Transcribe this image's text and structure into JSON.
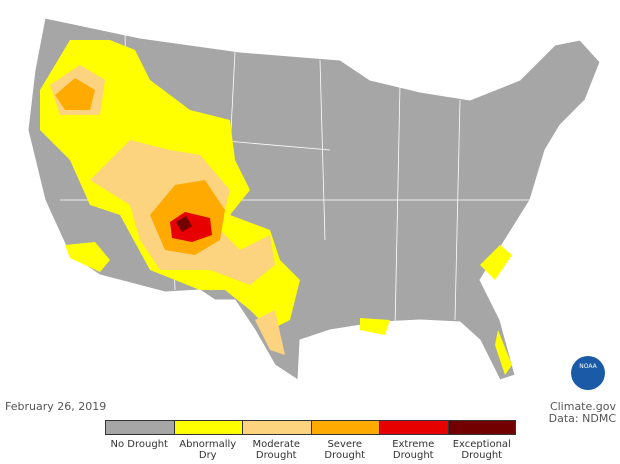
{
  "date": "February 26, 2019",
  "credit": {
    "source": "Climate.gov",
    "data": "Data: NDMC"
  },
  "logo": "NOAA",
  "legend": [
    {
      "label": "No Drought",
      "color": "#a6a6a6"
    },
    {
      "label": "Abnormally Dry",
      "color": "#ffff00"
    },
    {
      "label": "Moderate Drought",
      "color": "#fcd37f"
    },
    {
      "label": "Severe Drought",
      "color": "#ffaa00"
    },
    {
      "label": "Extreme Drought",
      "color": "#e60000"
    },
    {
      "label": "Exceptional Drought",
      "color": "#730000"
    }
  ]
}
